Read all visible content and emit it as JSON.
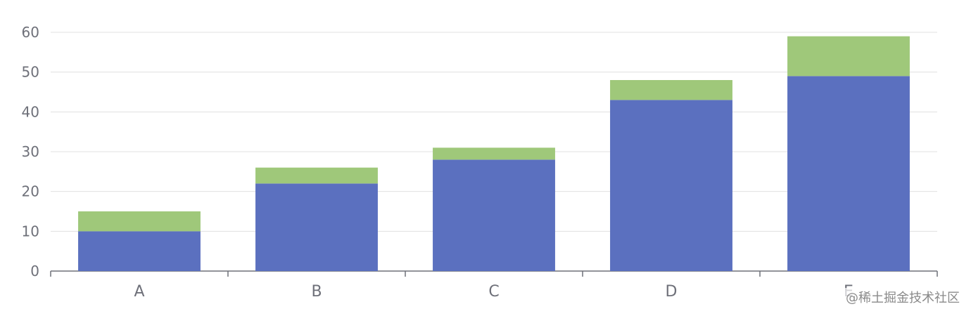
{
  "chart_data": {
    "type": "bar",
    "stacked": true,
    "categories": [
      "A",
      "B",
      "C",
      "D",
      "E"
    ],
    "series": [
      {
        "values": [
          10,
          22,
          28,
          43,
          49
        ],
        "color": "#5b70bf"
      },
      {
        "values": [
          5,
          4,
          3,
          5,
          10
        ],
        "color": "#9fc87a"
      }
    ],
    "title": "",
    "xlabel": "",
    "ylabel": "",
    "ylim": [
      0,
      60
    ],
    "yticks": [
      0,
      10,
      20,
      30,
      40,
      50,
      60
    ],
    "grid": true,
    "legend": "none"
  },
  "watermark": "@稀土掘金技术社区",
  "colors": {
    "grid": "#e0e0e0",
    "axis": "#6e7079",
    "text": "#6e7079"
  }
}
